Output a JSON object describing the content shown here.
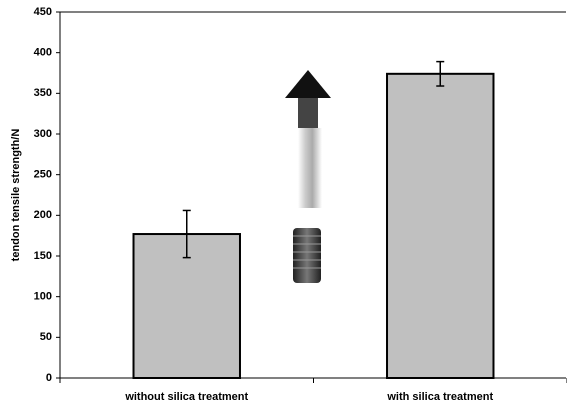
{
  "chart_data": {
    "type": "bar",
    "y_label": "tendon tensile strength/N",
    "categories": [
      "without silica treatment",
      "with silica treatment"
    ],
    "values": [
      177,
      374
    ],
    "errors": [
      29,
      15
    ],
    "color": "#c0c0c0",
    "ylim": [
      0,
      450
    ],
    "yticks": [
      0,
      50,
      100,
      150,
      200,
      250,
      300,
      350,
      400,
      450
    ]
  }
}
